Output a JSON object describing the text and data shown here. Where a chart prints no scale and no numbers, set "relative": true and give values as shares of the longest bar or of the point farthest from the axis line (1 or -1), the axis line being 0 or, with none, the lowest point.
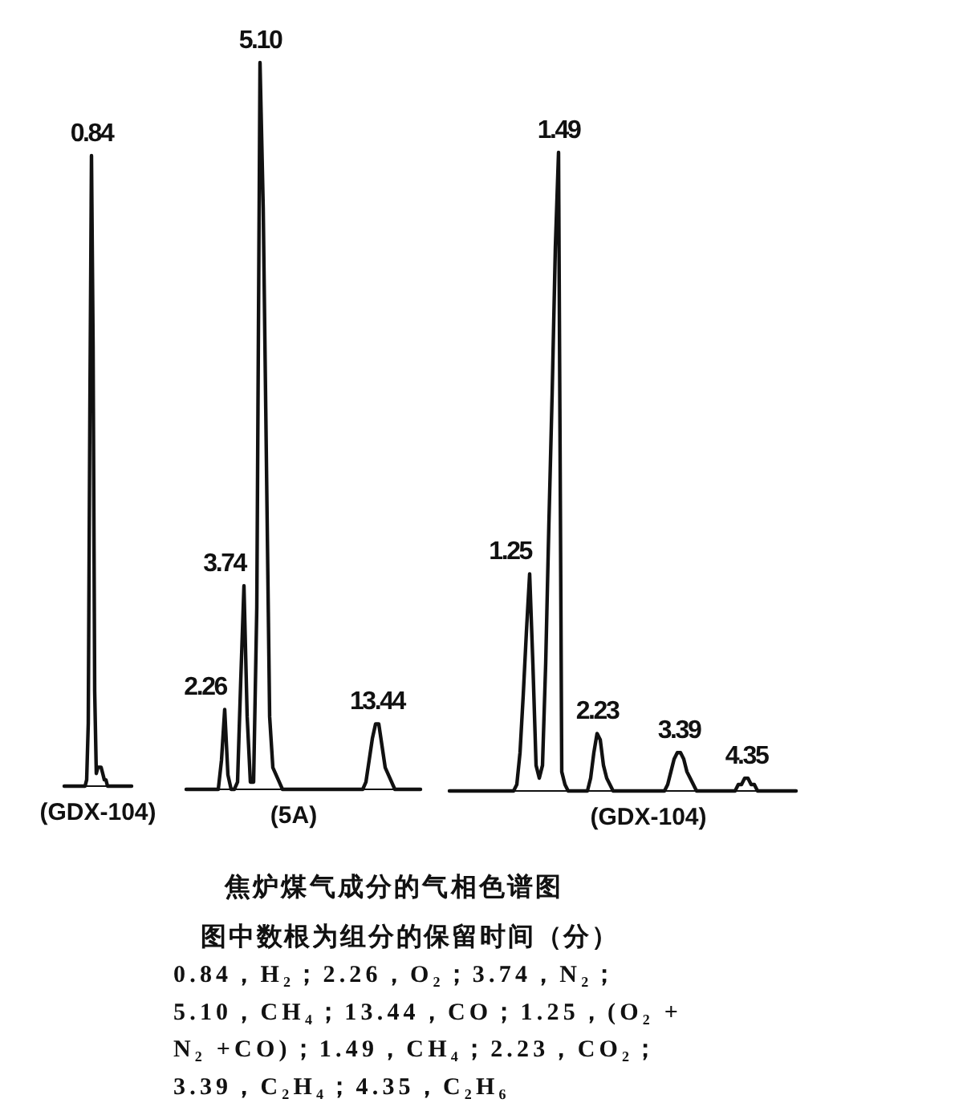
{
  "chart_data": [
    {
      "type": "line",
      "relative": true,
      "xlabel": "(GDX-104)",
      "color": "#111111",
      "categories": [
        null,
        null,
        null,
        null,
        null,
        null,
        null,
        null,
        null,
        null,
        null,
        null,
        null,
        null,
        null,
        null,
        null,
        null,
        null,
        null,
        null,
        null,
        null,
        null,
        null,
        null,
        null,
        null,
        null,
        null,
        null,
        null,
        null,
        null,
        null,
        null,
        null,
        null,
        null,
        null,
        null,
        null,
        null
      ],
      "values": [
        0,
        0,
        0,
        0,
        0,
        0,
        0,
        0,
        0,
        0,
        0,
        0,
        0,
        0,
        0.01,
        0.1,
        0.6,
        1,
        0.7,
        0.15,
        0.02,
        0.03,
        0.03,
        0.03,
        0.02,
        0.01,
        0.01,
        0,
        0,
        0,
        0,
        0,
        0,
        0,
        0,
        0,
        0,
        0,
        0,
        0,
        0,
        0,
        0
      ],
      "annotations": [
        "0.84"
      ]
    },
    {
      "type": "line",
      "relative": true,
      "xlabel": "(5A)",
      "color": "#111111",
      "categories": [
        null,
        null,
        null,
        null,
        null,
        null,
        null,
        null,
        null,
        null,
        null,
        null,
        null,
        null,
        null,
        null,
        null,
        null,
        null,
        null,
        null,
        null,
        null,
        null,
        null,
        null,
        null,
        null,
        null,
        null,
        null,
        null,
        null,
        null,
        null,
        null,
        null,
        null,
        null,
        null,
        null,
        null,
        null,
        null,
        null,
        null,
        null,
        null,
        null,
        null,
        null,
        null,
        null,
        null,
        null,
        null,
        null,
        null,
        null,
        null,
        null,
        null,
        null,
        null,
        null,
        null,
        null,
        null,
        null,
        null,
        null,
        null,
        null,
        null
      ],
      "values": [
        0,
        0,
        0,
        0,
        0,
        0,
        0,
        0,
        0,
        0,
        0,
        0.04,
        0.11,
        0.02,
        0,
        0,
        0.01,
        0.15,
        0.28,
        0.1,
        0.01,
        0.01,
        0.25,
        1,
        0.8,
        0.45,
        0.1,
        0.03,
        0.02,
        0.01,
        0,
        0,
        0,
        0,
        0,
        0,
        0,
        0,
        0,
        0,
        0,
        0,
        0,
        0,
        0,
        0,
        0,
        0,
        0,
        0,
        0,
        0,
        0,
        0,
        0,
        0,
        0.01,
        0.04,
        0.07,
        0.09,
        0.09,
        0.06,
        0.03,
        0.02,
        0.01,
        0,
        0,
        0,
        0,
        0,
        0,
        0,
        0,
        0
      ],
      "annotations": [
        "2.26",
        "3.74",
        "5.10",
        "13.44"
      ]
    },
    {
      "type": "line",
      "relative": true,
      "xlabel": "(GDX-104)",
      "color": "#111111",
      "categories": [
        null,
        null,
        null,
        null,
        null,
        null,
        null,
        null,
        null,
        null,
        null,
        null,
        null,
        null,
        null,
        null,
        null,
        null,
        null,
        null,
        null,
        null,
        null,
        null,
        null,
        null,
        null,
        null,
        null,
        null,
        null,
        null,
        null,
        null,
        null,
        null,
        null,
        null,
        null,
        null,
        null,
        null,
        null,
        null,
        null,
        null,
        null,
        null,
        null,
        null,
        null,
        null,
        null,
        null,
        null,
        null,
        null,
        null,
        null,
        null,
        null,
        null,
        null,
        null,
        null,
        null,
        null,
        null,
        null,
        null,
        null,
        null,
        null,
        null,
        null,
        null,
        null,
        null,
        null,
        null,
        null,
        null,
        null,
        null,
        null,
        null,
        null,
        null,
        null,
        null,
        null,
        null,
        null,
        null,
        null,
        null,
        null,
        null,
        null,
        null,
        null,
        null,
        null,
        null,
        null,
        null,
        null,
        null,
        null
      ],
      "values": [
        0,
        0,
        0,
        0,
        0,
        0,
        0,
        0,
        0,
        0,
        0,
        0,
        0,
        0,
        0,
        0,
        0,
        0,
        0,
        0,
        0,
        0.01,
        0.06,
        0.15,
        0.25,
        0.34,
        0.2,
        0.04,
        0.02,
        0.04,
        0.2,
        0.42,
        0.62,
        0.85,
        1,
        0.03,
        0.01,
        0,
        0,
        0,
        0,
        0,
        0,
        0,
        0.02,
        0.06,
        0.09,
        0.08,
        0.04,
        0.02,
        0.01,
        0,
        0,
        0,
        0,
        0,
        0,
        0,
        0,
        0,
        0,
        0,
        0,
        0,
        0,
        0,
        0,
        0,
        0.01,
        0.03,
        0.05,
        0.06,
        0.06,
        0.05,
        0.03,
        0.02,
        0.01,
        0,
        0,
        0,
        0,
        0,
        0,
        0,
        0,
        0,
        0,
        0,
        0,
        0,
        0.01,
        0.01,
        0.02,
        0.02,
        0.01,
        0.01,
        0,
        0,
        0,
        0,
        0,
        0,
        0,
        0,
        0,
        0,
        0,
        0,
        0
      ],
      "annotations": [
        "1.25",
        "1.49",
        "2.23",
        "3.39",
        "4.35"
      ]
    },
    {
      "type": "other",
      "title": "焦炉煤气成分的气相色谱图",
      "annotations": [
        "图中数根为组分的保留时间（分）",
        "0.84，H₂；2.26，O₂；3.74，N₂；",
        "5.10，CH₄；13.44，CO；1.25，(O₂ +",
        "N₂ +CO)；1.49，CH₄；2.23，CO₂；",
        "3.39，C₂H₄；4.35，C₂H₆"
      ]
    }
  ]
}
